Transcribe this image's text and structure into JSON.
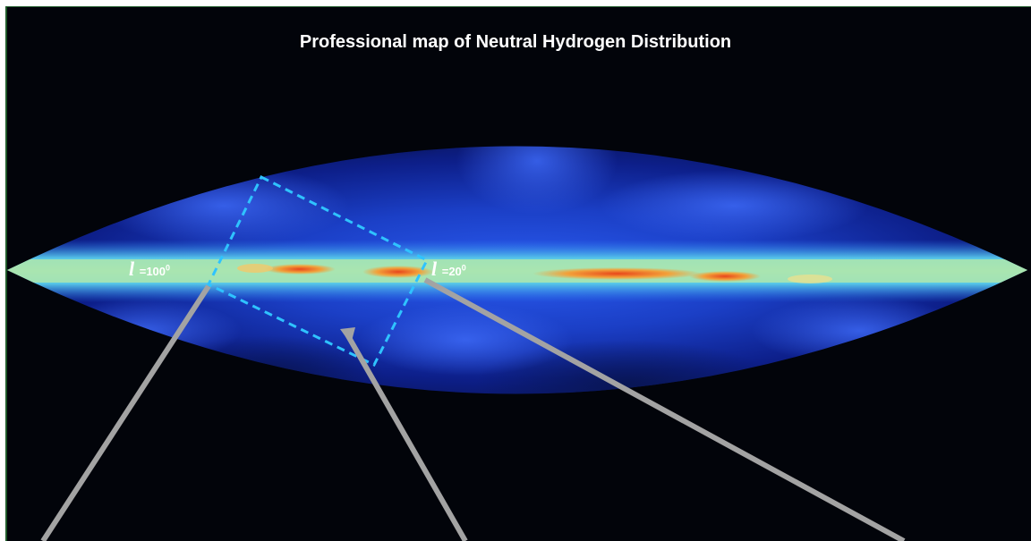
{
  "title": "Professional map of Neutral Hydrogen Distribution",
  "labels": {
    "left_longitude": {
      "symbol": "l",
      "text": " =100",
      "degree": "0"
    },
    "right_longitude": {
      "symbol": "l",
      "text": " =20",
      "degree": "0"
    }
  },
  "colors": {
    "background": "#02040a",
    "sky_deep": "#0a1a6e",
    "sky_mid": "#1f49d6",
    "band_light": "#a6e2b4",
    "band_hot": "#e34a1a",
    "selection_box": "#2fc3ff",
    "pointer_lines": "#a3a3a3"
  }
}
